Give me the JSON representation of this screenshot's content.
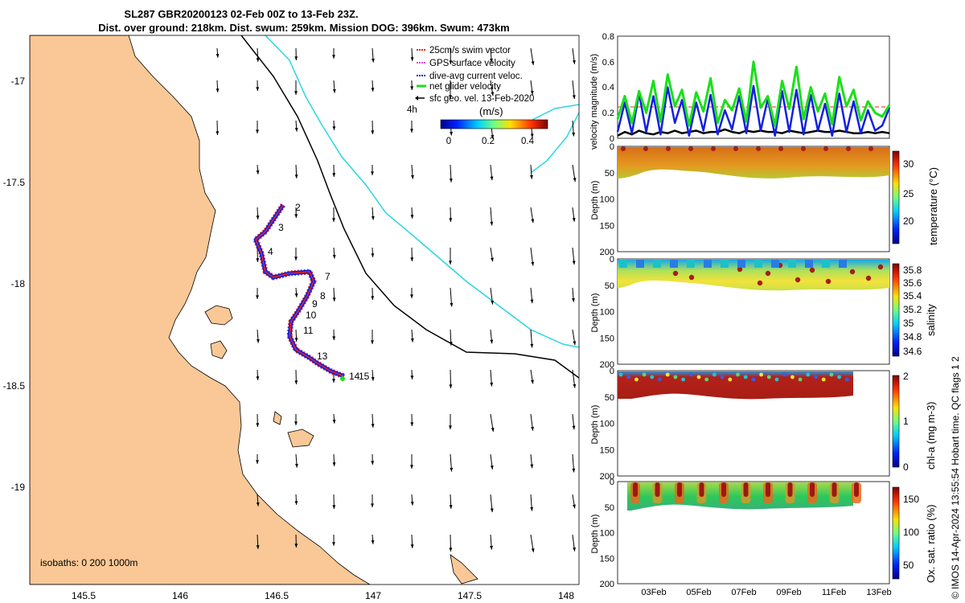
{
  "title": {
    "line1": "SL287 GBR20200123 02-Feb 00Z to 13-Feb 23Z.",
    "line2": "Dist. over ground: 218km. Dist. swum: 259km. Mission DOG: 396km. Swum: 473km"
  },
  "colors": {
    "land": "#f9c896",
    "swim": "#e8231c",
    "gps": "#d24cd8",
    "dive": "#1020e0",
    "net": "#19e019",
    "sfc": "#000000",
    "isobath_200": "#000000",
    "isobath_1000": "#27d8e0"
  },
  "map": {
    "legend": [
      {
        "label": "25cm/s swim vector",
        "key": "swim"
      },
      {
        "label": "GPS surface velocity",
        "key": "gps"
      },
      {
        "label": "dive-avg current veloc.",
        "key": "dive"
      },
      {
        "label": "net glider velocity",
        "key": "net"
      },
      {
        "label": "sfc geo. vel. 13-Feb-2020",
        "key": "sfc"
      }
    ],
    "interval_label": "4h",
    "colorbar_title": "(m/s)",
    "colorbar_ticks": [
      "0",
      "0.2",
      "0.4"
    ],
    "isobaths_label": "isobaths: 0   200  1000m",
    "lon_ticks": [
      "145.5",
      "146",
      "146.5",
      "147",
      "147.5",
      "148"
    ],
    "lat_ticks": [
      "-17",
      "-17.5",
      "-18",
      "-18.5",
      "-19"
    ],
    "day_labels": [
      "2",
      "3",
      "4",
      "7",
      "8",
      "9",
      "10",
      "11",
      "13",
      "14",
      "15"
    ]
  },
  "chart_data": [
    {
      "type": "line",
      "title": "",
      "ylabel": "velocity magnitude (m/s)",
      "ylim": [
        0,
        0.8
      ],
      "yticks": [
        "0",
        "0.2",
        "0.4",
        "0.6",
        "0.8"
      ],
      "series": [
        {
          "name": "net glider velocity",
          "color_key": "net",
          "values": [
            0.15,
            0.33,
            0.12,
            0.37,
            0.2,
            0.45,
            0.13,
            0.5,
            0.25,
            0.38,
            0.1,
            0.36,
            0.21,
            0.47,
            0.12,
            0.3,
            0.22,
            0.39,
            0.13,
            0.6,
            0.24,
            0.33,
            0.1,
            0.45,
            0.23,
            0.56,
            0.15,
            0.4,
            0.21,
            0.35,
            0.11,
            0.48,
            0.25,
            0.38,
            0.14,
            0.29,
            0.2,
            0.17,
            0.26
          ]
        },
        {
          "name": "dive-avg current veloc.",
          "color_key": "dive",
          "values": [
            0.05,
            0.28,
            0.04,
            0.35,
            0.05,
            0.33,
            0.03,
            0.4,
            0.12,
            0.3,
            0.02,
            0.28,
            0.06,
            0.34,
            0.03,
            0.22,
            0.07,
            0.33,
            0.04,
            0.41,
            0.06,
            0.31,
            0.02,
            0.37,
            0.05,
            0.38,
            0.03,
            0.34,
            0.06,
            0.27,
            0.02,
            0.35,
            0.05,
            0.29,
            0.04,
            0.22,
            0.06,
            0.1,
            0.24
          ]
        },
        {
          "name": "sfc geo. vel.",
          "color_key": "sfc",
          "values": [
            0.02,
            0.05,
            0.03,
            0.06,
            0.04,
            0.03,
            0.05,
            0.04,
            0.06,
            0.04,
            0.05,
            0.06,
            0.04,
            0.05,
            0.05,
            0.07,
            0.05,
            0.04,
            0.06,
            0.05,
            0.06,
            0.05,
            0.05,
            0.04,
            0.06,
            0.05,
            0.04,
            0.05,
            0.06,
            0.05,
            0.05,
            0.06,
            0.05,
            0.04,
            0.04,
            0.05,
            0.04,
            0.05,
            0.04
          ]
        }
      ]
    },
    {
      "type": "heatmap",
      "ylabel": "Depth (m)",
      "colorbar_label": "temperature (°C)",
      "ylim": [
        200,
        0
      ],
      "yticks": [
        "0",
        "50",
        "100",
        "150",
        "200"
      ],
      "cticks": [
        "20",
        "25",
        "30"
      ]
    },
    {
      "type": "heatmap",
      "ylabel": "Depth (m)",
      "colorbar_label": "salinity",
      "ylim": [
        200,
        0
      ],
      "yticks": [
        "0",
        "50",
        "100",
        "150",
        "200"
      ],
      "cticks": [
        "34.6",
        "34.8",
        "35",
        "35.2",
        "35.4",
        "35.6",
        "35.8"
      ]
    },
    {
      "type": "heatmap",
      "ylabel": "Depth (m)",
      "colorbar_label": "chl-a (mg m-3)",
      "ylim": [
        200,
        0
      ],
      "yticks": [
        "0",
        "50",
        "100",
        "150",
        "200"
      ],
      "cticks": [
        "0",
        "1",
        "2"
      ]
    },
    {
      "type": "heatmap",
      "ylabel": "Depth (m)",
      "colorbar_label": "Ox. sat. ratio (%)",
      "ylim": [
        200,
        0
      ],
      "yticks": [
        "0",
        "50",
        "100",
        "150",
        "200"
      ],
      "cticks": [
        "50",
        "100",
        "150"
      ],
      "xticks": [
        "03Feb",
        "05Feb",
        "07Feb",
        "09Feb",
        "11Feb",
        "13Feb"
      ]
    }
  ],
  "footer": {
    "stamp": "© IMOS 14-Apr-2024 13:55:54 Hobart time. QC flags 1  2"
  }
}
